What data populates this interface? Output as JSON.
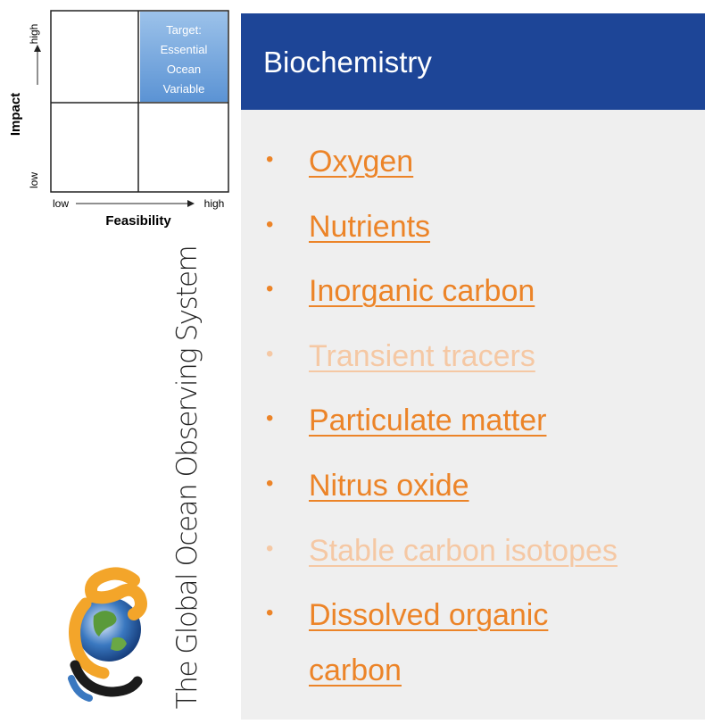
{
  "matrix": {
    "y_axis_label": "Impact",
    "y_high": "high",
    "y_low": "low",
    "x_axis_label": "Feasibility",
    "x_low": "low",
    "x_high": "high",
    "target_lines": [
      "Target:",
      "Essential",
      "Ocean",
      "Variable"
    ]
  },
  "logo": {
    "text": "The Global Ocean Observing System"
  },
  "panel": {
    "title": "Biochemistry",
    "items": [
      {
        "label": "Oxygen",
        "faded": false
      },
      {
        "label": "Nutrients",
        "faded": false
      },
      {
        "label": "Inorganic carbon",
        "faded": false
      },
      {
        "label": "Transient tracers",
        "faded": true
      },
      {
        "label": "Particulate matter",
        "faded": false
      },
      {
        "label": "Nitrus oxide",
        "faded": false
      },
      {
        "label": "Stable carbon isotopes",
        "faded": true
      },
      {
        "label": "Dissolved organic carbon",
        "faded": false
      }
    ]
  }
}
